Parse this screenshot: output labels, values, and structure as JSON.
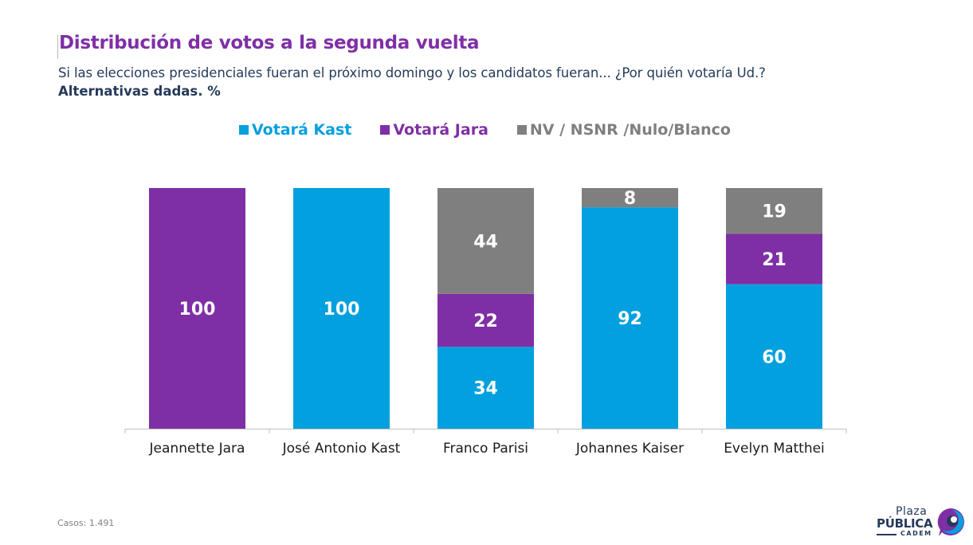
{
  "header": {
    "title": "Distribución de votos a la segunda vuelta",
    "subtitle": "Si las elecciones presidenciales fueran el próximo domingo y los candidatos fueran... ¿Por quién votaría Ud.?",
    "subtitle_bold": "Alternativas dadas. %"
  },
  "footer": {
    "casos_label": "Casos:",
    "casos_value": "1.491"
  },
  "logo": {
    "line1": "Plaza",
    "line2": "PÚBLICA",
    "line3": "CADEM"
  },
  "chart_data": {
    "type": "bar",
    "stacked": true,
    "title": "Distribución de votos a la segunda vuelta",
    "xlabel": "",
    "ylabel": "",
    "ylim": [
      0,
      100
    ],
    "grid": false,
    "legend_position": "top-center",
    "categories": [
      "Jeannette Jara",
      "José Antonio Kast",
      "Franco Parisi",
      "Johannes Kaiser",
      "Evelyn Matthei"
    ],
    "series": [
      {
        "name": "Votará Kast",
        "color": "#02a0de",
        "values": [
          null,
          100,
          34,
          92,
          60
        ]
      },
      {
        "name": "Votará Jara",
        "color": "#7f2fa5",
        "values": [
          100,
          null,
          22,
          null,
          21
        ]
      },
      {
        "name": "NV / NSNR /Nulo/Blanco",
        "color": "#7f7f7f",
        "values": [
          null,
          null,
          44,
          8,
          19
        ]
      }
    ]
  }
}
